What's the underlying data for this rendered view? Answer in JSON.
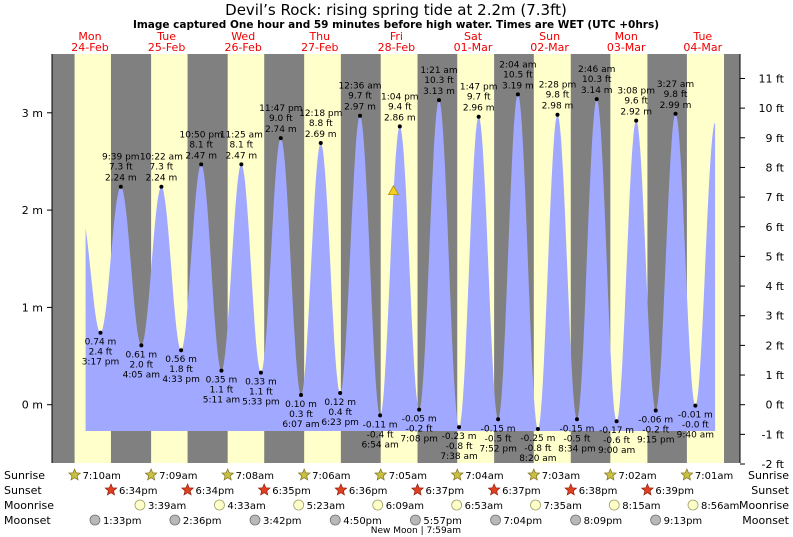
{
  "chart_data": {
    "type": "area",
    "title": "Devil’s Rock: rising  spring tide at 2.2m (7.3ft)",
    "subtitle": "Image captured One hour and 59 minutes before high water. Times are WET (UTC +0hrs)",
    "days": [
      {
        "dow": "Mon",
        "date": "24-Feb"
      },
      {
        "dow": "Tue",
        "date": "25-Feb"
      },
      {
        "dow": "Wed",
        "date": "26-Feb"
      },
      {
        "dow": "Thu",
        "date": "27-Feb"
      },
      {
        "dow": "Fri",
        "date": "28-Feb"
      },
      {
        "dow": "Sat",
        "date": "01-Mar"
      },
      {
        "dow": "Sun",
        "date": "02-Mar"
      },
      {
        "dow": "Mon",
        "date": "03-Mar"
      },
      {
        "dow": "Tue",
        "date": "04-Mar"
      }
    ],
    "y_left_ticks": [
      "3 m",
      "2 m",
      "1 m",
      "0 m"
    ],
    "y_right_ticks": [
      "11 ft",
      "10 ft",
      "9 ft",
      "8 ft",
      "7 ft",
      "6 ft",
      "5 ft",
      "4 ft",
      "3 ft",
      "2 ft",
      "1 ft",
      "0 ft",
      "-1 ft",
      "-2 ft"
    ],
    "ylim_m": [
      -0.6,
      3.55
    ],
    "extremes": [
      {
        "type": "low",
        "time": "3:17 pm",
        "m": "0.74 m",
        "ft": "2.4 ft",
        "value": 0.74
      },
      {
        "type": "high",
        "time": "9:39 pm",
        "m": "2.24 m",
        "ft": "7.3 ft",
        "value": 2.24
      },
      {
        "type": "low",
        "time": "4:05 am",
        "m": "0.61 m",
        "ft": "2.0 ft",
        "value": 0.61
      },
      {
        "type": "high",
        "time": "10:22 am",
        "m": "2.24 m",
        "ft": "7.3 ft",
        "value": 2.24
      },
      {
        "type": "low",
        "time": "4:33 pm",
        "m": "0.56 m",
        "ft": "1.8 ft",
        "value": 0.56
      },
      {
        "type": "high",
        "time": "10:50 pm",
        "m": "2.47 m",
        "ft": "8.1 ft",
        "value": 2.47
      },
      {
        "type": "low",
        "time": "5:11 am",
        "m": "0.35 m",
        "ft": "1.1 ft",
        "value": 0.35
      },
      {
        "type": "high",
        "time": "11:25 am",
        "m": "2.47 m",
        "ft": "8.1 ft",
        "value": 2.47
      },
      {
        "type": "low",
        "time": "5:33 pm",
        "m": "0.33 m",
        "ft": "1.1 ft",
        "value": 0.33
      },
      {
        "type": "high",
        "time": "11:47 pm",
        "m": "2.74 m",
        "ft": "9.0 ft",
        "value": 2.74
      },
      {
        "type": "low",
        "time": "6:07 am",
        "m": "0.10 m",
        "ft": "0.3 ft",
        "value": 0.1
      },
      {
        "type": "high",
        "time": "12:18 pm",
        "m": "2.69 m",
        "ft": "8.8 ft",
        "value": 2.69
      },
      {
        "type": "low",
        "time": "6:23 pm",
        "m": "0.12 m",
        "ft": "0.4 ft",
        "value": 0.12
      },
      {
        "type": "high",
        "time": "12:36 am",
        "m": "2.97 m",
        "ft": "9.7 ft",
        "value": 2.97
      },
      {
        "type": "low",
        "time": "6:54 am",
        "m": "-0.11 m",
        "ft": "-0.4 ft",
        "value": -0.11
      },
      {
        "type": "high",
        "time": "1:04 pm",
        "m": "2.86 m",
        "ft": "9.4 ft",
        "value": 2.86
      },
      {
        "type": "low",
        "time": "7:08 pm",
        "m": "-0.05 m",
        "ft": "-0.2 ft",
        "value": -0.05
      },
      {
        "type": "high",
        "time": "1:21 am",
        "m": "3.13 m",
        "ft": "10.3 ft",
        "value": 3.13
      },
      {
        "type": "low",
        "time": "7:38 am",
        "m": "-0.23 m",
        "ft": "-0.8 ft",
        "value": -0.23
      },
      {
        "type": "high",
        "time": "1:47 pm",
        "m": "2.96 m",
        "ft": "9.7 ft",
        "value": 2.96
      },
      {
        "type": "low",
        "time": "7:52 pm",
        "m": "-0.15 m",
        "ft": "-0.5 ft",
        "value": -0.15
      },
      {
        "type": "high",
        "time": "2:04 am",
        "m": "3.19 m",
        "ft": "10.5 ft",
        "value": 3.19
      },
      {
        "type": "low",
        "time": "8:20 am",
        "m": "-0.25 m",
        "ft": "-0.8 ft",
        "value": -0.25
      },
      {
        "type": "high",
        "time": "2:28 pm",
        "m": "2.98 m",
        "ft": "9.8 ft",
        "value": 2.98
      },
      {
        "type": "low",
        "time": "8:34 pm",
        "m": "-0.15 m",
        "ft": "-0.5 ft",
        "value": -0.15
      },
      {
        "type": "high",
        "time": "2:46 am",
        "m": "3.14 m",
        "ft": "10.3 ft",
        "value": 3.14
      },
      {
        "type": "low",
        "time": "9:00 am",
        "m": "-0.17 m",
        "ft": "-0.6 ft",
        "value": -0.17
      },
      {
        "type": "high",
        "time": "3:08 pm",
        "m": "2.92 m",
        "ft": "9.6 ft",
        "value": 2.92
      },
      {
        "type": "low",
        "time": "9:15 pm",
        "m": "-0.06 m",
        "ft": "-0.2 ft",
        "value": -0.06
      },
      {
        "type": "high",
        "time": "3:27 am",
        "m": "2.99 m",
        "ft": "9.8 ft",
        "value": 2.99
      },
      {
        "type": "low",
        "time": "9:40 am",
        "m": "-0.01 m",
        "ft": "-0.0 ft",
        "value": -0.01
      }
    ],
    "current_level_m": 2.2,
    "bottom_rows": {
      "sunrise_label": "Sunrise",
      "sunset_label": "Sunset",
      "moonrise_label": "Moonrise",
      "moonset_label": "Moonset",
      "sunrise": [
        "7:10am",
        "7:09am",
        "7:08am",
        "7:06am",
        "7:05am",
        "7:04am",
        "7:03am",
        "7:02am",
        "7:01am"
      ],
      "sunset": [
        "6:34pm",
        "6:34pm",
        "6:35pm",
        "6:36pm",
        "6:37pm",
        "6:37pm",
        "6:38pm",
        "6:39pm"
      ],
      "moonrise": [
        "3:39am",
        "4:33am",
        "5:23am",
        "6:09am",
        "6:53am",
        "7:35am",
        "8:15am",
        "8:56am"
      ],
      "moonset": [
        "1:33pm",
        "2:36pm",
        "3:42pm",
        "4:50pm",
        "5:57pm",
        "7:04pm",
        "8:09pm",
        "9:13pm"
      ],
      "new_moon": "New Moon | 7:59am"
    },
    "colors": {
      "day": "#ffffcc",
      "night": "#808080",
      "water": "#a0a8ff",
      "title": "#000000",
      "date": "#ee0000",
      "marker": "#f5d020"
    }
  }
}
